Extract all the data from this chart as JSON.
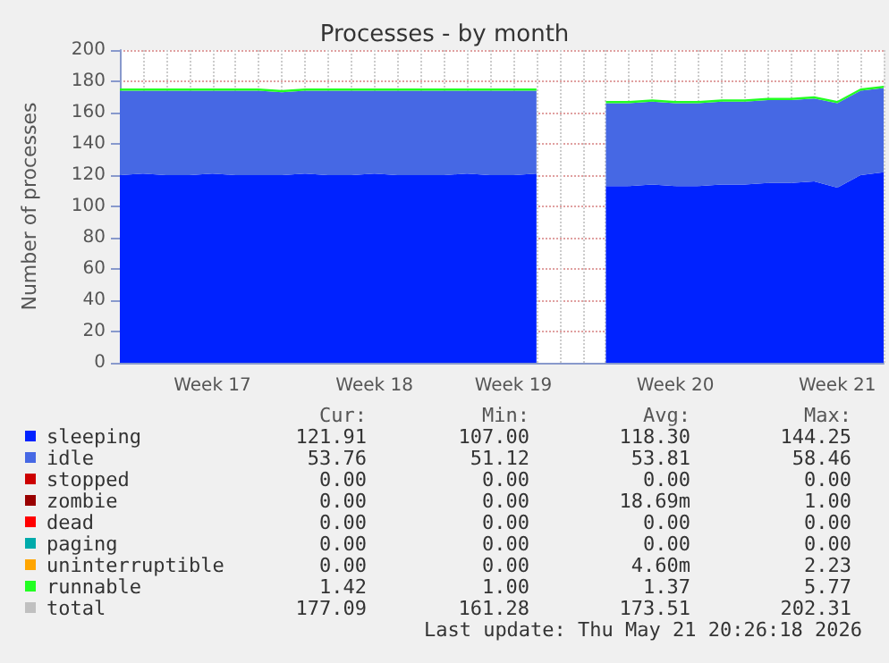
{
  "chart_data": {
    "type": "area",
    "title": "Processes - by month",
    "ylabel": "Number of processes",
    "categories": [
      null,
      null,
      null,
      null,
      "Week 17",
      null,
      null,
      null,
      null,
      null,
      null,
      "Week 18",
      null,
      null,
      null,
      null,
      null,
      "Week 19",
      null,
      null,
      null,
      null,
      null,
      null,
      "Week 20",
      null,
      null,
      null,
      null,
      null,
      null,
      "Week 21",
      null,
      null
    ],
    "stacked": true,
    "ylim": [
      0,
      200
    ],
    "yticks": [
      0,
      20,
      40,
      60,
      80,
      100,
      120,
      140,
      160,
      180,
      200
    ],
    "grid": true,
    "legend": "bottom",
    "marker": "none",
    "series": [
      {
        "name": "sleeping",
        "color": "#0022ff",
        "values": [
          120,
          121,
          120,
          120,
          121,
          120,
          120,
          120,
          121,
          120,
          120,
          121,
          120,
          120,
          120,
          121,
          120,
          120,
          121,
          null,
          null,
          113,
          113,
          114,
          113,
          113,
          114,
          114,
          115,
          115,
          116,
          112,
          120,
          121.91
        ]
      },
      {
        "name": "idle",
        "color": "#4668e4",
        "values": [
          54,
          53,
          54,
          54,
          53,
          54,
          54,
          53,
          53,
          54,
          54,
          53,
          54,
          54,
          54,
          53,
          54,
          54,
          53,
          null,
          null,
          53,
          53,
          53,
          53,
          53,
          53,
          53,
          53,
          53,
          53,
          54,
          54,
          53.76
        ]
      },
      {
        "name": "stopped",
        "color": "#cc0000",
        "values": [
          null,
          null,
          null,
          null,
          null,
          null,
          null,
          null,
          null,
          null,
          null,
          null,
          null,
          null,
          null,
          null,
          null,
          null,
          null,
          null,
          null,
          null,
          null,
          null,
          null,
          null,
          null,
          null,
          null,
          null,
          null,
          null,
          null,
          null
        ]
      },
      {
        "name": "zombie",
        "color": "#990000",
        "values": [
          null,
          null,
          null,
          null,
          null,
          null,
          null,
          null,
          null,
          null,
          null,
          null,
          null,
          null,
          null,
          null,
          null,
          null,
          null,
          null,
          null,
          null,
          null,
          null,
          null,
          null,
          null,
          null,
          null,
          null,
          null,
          null,
          null,
          null
        ]
      },
      {
        "name": "dead",
        "color": "#ff0000",
        "values": [
          null,
          null,
          null,
          null,
          null,
          null,
          null,
          null,
          null,
          null,
          null,
          null,
          null,
          null,
          null,
          null,
          null,
          null,
          null,
          null,
          null,
          null,
          null,
          null,
          null,
          null,
          null,
          null,
          null,
          null,
          null,
          null,
          null,
          null
        ]
      },
      {
        "name": "paging",
        "color": "#00aaaa",
        "values": [
          null,
          null,
          null,
          null,
          null,
          null,
          null,
          null,
          null,
          null,
          null,
          null,
          null,
          null,
          null,
          null,
          null,
          null,
          null,
          null,
          null,
          null,
          null,
          null,
          null,
          null,
          null,
          null,
          null,
          null,
          null,
          null,
          null,
          null
        ]
      },
      {
        "name": "uninterruptible",
        "color": "#ffa500",
        "values": [
          null,
          null,
          null,
          null,
          null,
          null,
          null,
          null,
          null,
          null,
          null,
          null,
          null,
          null,
          null,
          null,
          null,
          null,
          null,
          null,
          null,
          null,
          null,
          null,
          null,
          null,
          null,
          null,
          null,
          null,
          null,
          null,
          null,
          null
        ]
      },
      {
        "name": "runnable",
        "color": "#22ff22",
        "values": [
          1.4,
          1.4,
          1.4,
          1.4,
          1.4,
          1.4,
          1.4,
          1.4,
          1.4,
          1.4,
          1.4,
          1.4,
          1.4,
          1.4,
          1.4,
          1.4,
          1.4,
          1.4,
          1.4,
          null,
          null,
          1.4,
          1.4,
          1.4,
          1.4,
          1.4,
          1.4,
          1.4,
          1.4,
          1.4,
          1.4,
          1.4,
          1.4,
          1.42
        ]
      },
      {
        "name": "total",
        "color": "#c0c0c0",
        "values": [
          null,
          null,
          null,
          null,
          null,
          null,
          null,
          null,
          null,
          null,
          null,
          null,
          null,
          null,
          null,
          null,
          null,
          null,
          null,
          null,
          null,
          null,
          null,
          null,
          null,
          null,
          null,
          null,
          null,
          null,
          null,
          null,
          null,
          null
        ]
      }
    ],
    "annotations": [
      "Cur:",
      "Min:",
      "Avg:",
      "Max:",
      "121.91",
      "107.00",
      "118.30",
      "144.25",
      "53.76",
      "51.12",
      "53.81",
      "58.46",
      "0.00",
      "0.00",
      "0.00",
      "0.00",
      "0.00",
      "0.00",
      "18.69m",
      "1.00",
      "0.00",
      "0.00",
      "0.00",
      "0.00",
      "0.00",
      "0.00",
      "0.00",
      "0.00",
      "0.00",
      "0.00",
      "4.60m",
      "2.23",
      "1.42",
      "1.00",
      "1.37",
      "5.77",
      "177.09",
      "161.28",
      "173.51",
      "202.31",
      "Last update: Thu May 21 20:26:18 2026"
    ]
  }
}
